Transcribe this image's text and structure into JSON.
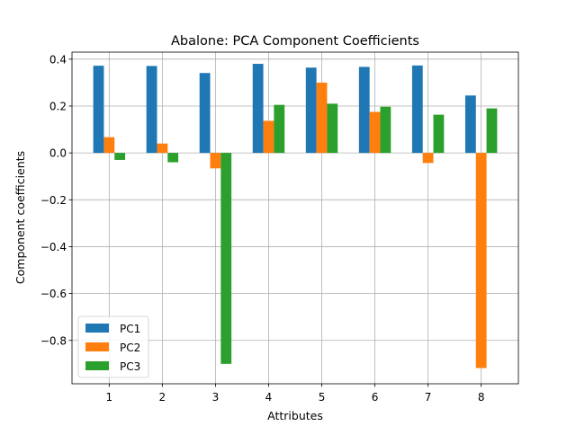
{
  "chart_data": {
    "type": "bar",
    "title": "Abalone: PCA Component Coefficients",
    "xlabel": "Attributes",
    "ylabel": "Component coefficients",
    "categories": [
      "1",
      "2",
      "3",
      "4",
      "5",
      "6",
      "7",
      "8"
    ],
    "series": [
      {
        "name": "PC1",
        "color": "#1f77b4",
        "values": [
          0.372,
          0.371,
          0.341,
          0.38,
          0.364,
          0.367,
          0.373,
          0.245
        ]
      },
      {
        "name": "PC2",
        "color": "#ff7f0e",
        "values": [
          0.067,
          0.04,
          -0.066,
          0.137,
          0.3,
          0.175,
          -0.043,
          -0.918
        ]
      },
      {
        "name": "PC3",
        "color": "#2ca02c",
        "values": [
          -0.03,
          -0.04,
          -0.9,
          0.205,
          0.21,
          0.197,
          0.163,
          0.19
        ]
      }
    ],
    "ylim": [
      -0.985,
      0.43
    ],
    "yticks": [
      0.4,
      0.2,
      0.0,
      -0.2,
      -0.4,
      -0.6,
      -0.8
    ],
    "ytick_labels": [
      "0.4",
      "0.2",
      "0.0",
      "−0.2",
      "−0.4",
      "−0.6",
      "−0.8"
    ],
    "grid": true,
    "legend_position": "lower-left"
  }
}
